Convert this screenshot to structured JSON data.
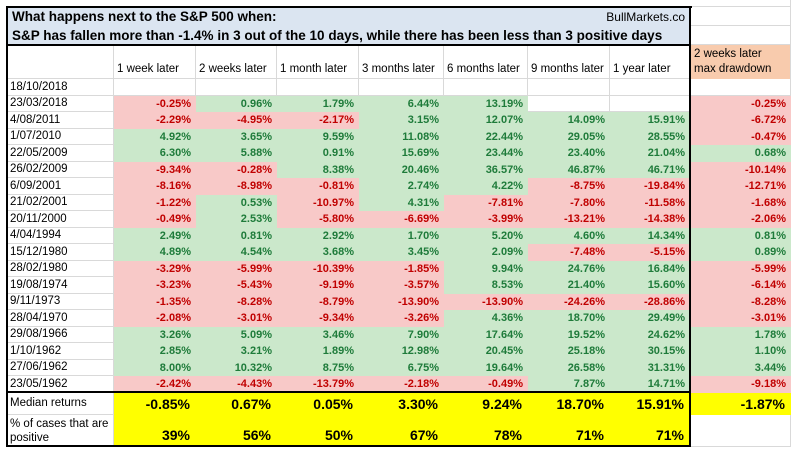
{
  "title": {
    "line1": "What happens next to the S&P 500 when:",
    "line2": "S&P has fallen more than -1.4% in 3 out of the 10 days, while there has been less than 3 positive days",
    "brand": "BullMarkets.co"
  },
  "columns": [
    "1 week later",
    "2 weeks later",
    "1 month later",
    "3 months later",
    "6 months later",
    "9 months later",
    "1 year later"
  ],
  "drawdown_header": {
    "line1": "2 weeks later",
    "line2": "max drawdown"
  },
  "rows": [
    {
      "date": "18/10/2018",
      "values": [
        null,
        null,
        null,
        null,
        null,
        null,
        null
      ],
      "drawdown": null
    },
    {
      "date": "23/03/2018",
      "values": [
        "-0.25%",
        "0.96%",
        "1.79%",
        "6.44%",
        "13.19%",
        null,
        null
      ],
      "drawdown": "-0.25%"
    },
    {
      "date": "4/08/2011",
      "values": [
        "-2.29%",
        "-4.95%",
        "-2.17%",
        "3.15%",
        "12.07%",
        "14.09%",
        "15.91%"
      ],
      "drawdown": "-6.72%"
    },
    {
      "date": "1/07/2010",
      "values": [
        "4.92%",
        "3.65%",
        "9.59%",
        "11.08%",
        "22.44%",
        "29.05%",
        "28.55%"
      ],
      "drawdown": "-0.47%"
    },
    {
      "date": "22/05/2009",
      "values": [
        "6.30%",
        "5.88%",
        "0.91%",
        "15.69%",
        "23.44%",
        "23.40%",
        "21.04%"
      ],
      "drawdown": "0.68%"
    },
    {
      "date": "26/02/2009",
      "values": [
        "-9.34%",
        "-0.28%",
        "8.38%",
        "20.46%",
        "36.57%",
        "46.87%",
        "46.71%"
      ],
      "drawdown": "-10.14%"
    },
    {
      "date": "6/09/2001",
      "values": [
        "-8.16%",
        "-8.98%",
        "-0.81%",
        "2.74%",
        "4.22%",
        "-8.75%",
        "-19.84%"
      ],
      "drawdown": "-12.71%"
    },
    {
      "date": "21/02/2001",
      "values": [
        "-1.22%",
        "0.53%",
        "-10.97%",
        "4.31%",
        "-7.81%",
        "-7.80%",
        "-11.58%"
      ],
      "drawdown": "-1.68%"
    },
    {
      "date": "20/11/2000",
      "values": [
        "-0.49%",
        "2.53%",
        "-5.80%",
        "-6.69%",
        "-3.99%",
        "-13.21%",
        "-14.38%"
      ],
      "drawdown": "-2.06%"
    },
    {
      "date": "4/04/1994",
      "values": [
        "2.49%",
        "0.81%",
        "2.92%",
        "1.70%",
        "5.20%",
        "4.60%",
        "14.34%"
      ],
      "drawdown": "0.81%"
    },
    {
      "date": "15/12/1980",
      "values": [
        "4.89%",
        "4.54%",
        "3.68%",
        "3.45%",
        "2.09%",
        "-7.48%",
        "-5.15%"
      ],
      "drawdown": "0.89%"
    },
    {
      "date": "28/02/1980",
      "values": [
        "-3.29%",
        "-5.99%",
        "-10.39%",
        "-1.85%",
        "9.94%",
        "24.76%",
        "16.84%"
      ],
      "drawdown": "-5.99%"
    },
    {
      "date": "19/08/1974",
      "values": [
        "-3.23%",
        "-5.43%",
        "-9.19%",
        "-3.57%",
        "8.53%",
        "21.40%",
        "15.60%"
      ],
      "drawdown": "-6.14%"
    },
    {
      "date": "9/11/1973",
      "values": [
        "-1.35%",
        "-8.28%",
        "-8.79%",
        "-13.90%",
        "-13.90%",
        "-24.26%",
        "-28.86%"
      ],
      "drawdown": "-8.28%"
    },
    {
      "date": "28/04/1970",
      "values": [
        "-2.08%",
        "-3.01%",
        "-9.34%",
        "-3.26%",
        "4.36%",
        "18.70%",
        "29.49%"
      ],
      "drawdown": "-3.01%"
    },
    {
      "date": "29/08/1966",
      "values": [
        "3.26%",
        "5.09%",
        "3.46%",
        "7.90%",
        "17.64%",
        "19.52%",
        "24.62%"
      ],
      "drawdown": "1.78%"
    },
    {
      "date": "1/10/1962",
      "values": [
        "2.85%",
        "3.21%",
        "1.89%",
        "12.98%",
        "20.45%",
        "25.18%",
        "30.15%"
      ],
      "drawdown": "1.10%"
    },
    {
      "date": "27/06/1962",
      "values": [
        "8.00%",
        "10.32%",
        "8.75%",
        "6.75%",
        "19.64%",
        "26.58%",
        "31.31%"
      ],
      "drawdown": "3.44%"
    },
    {
      "date": "23/05/1962",
      "values": [
        "-2.42%",
        "-4.43%",
        "-13.79%",
        "-2.18%",
        "-0.49%",
        "7.87%",
        "14.71%"
      ],
      "drawdown": "-9.18%"
    }
  ],
  "summary": {
    "median_label": "Median returns",
    "median_values": [
      "-0.85%",
      "0.67%",
      "0.05%",
      "3.30%",
      "9.24%",
      "18.70%",
      "15.91%"
    ],
    "median_drawdown": "-1.87%",
    "positive_label": "% of cases that are positive",
    "positive_values": [
      "39%",
      "56%",
      "50%",
      "67%",
      "78%",
      "71%",
      "71%"
    ]
  },
  "colors": {
    "title_bg": "#dbe5f1",
    "orange_bg": "#f8cbad",
    "positive_bg": "#cbe8cb",
    "positive_text": "#1e7b3a",
    "negative_bg": "#f8c9c8",
    "negative_text": "#c00000",
    "summary_bg": "#ffff00",
    "gridline": "#d9d9d9",
    "border": "#000000"
  }
}
